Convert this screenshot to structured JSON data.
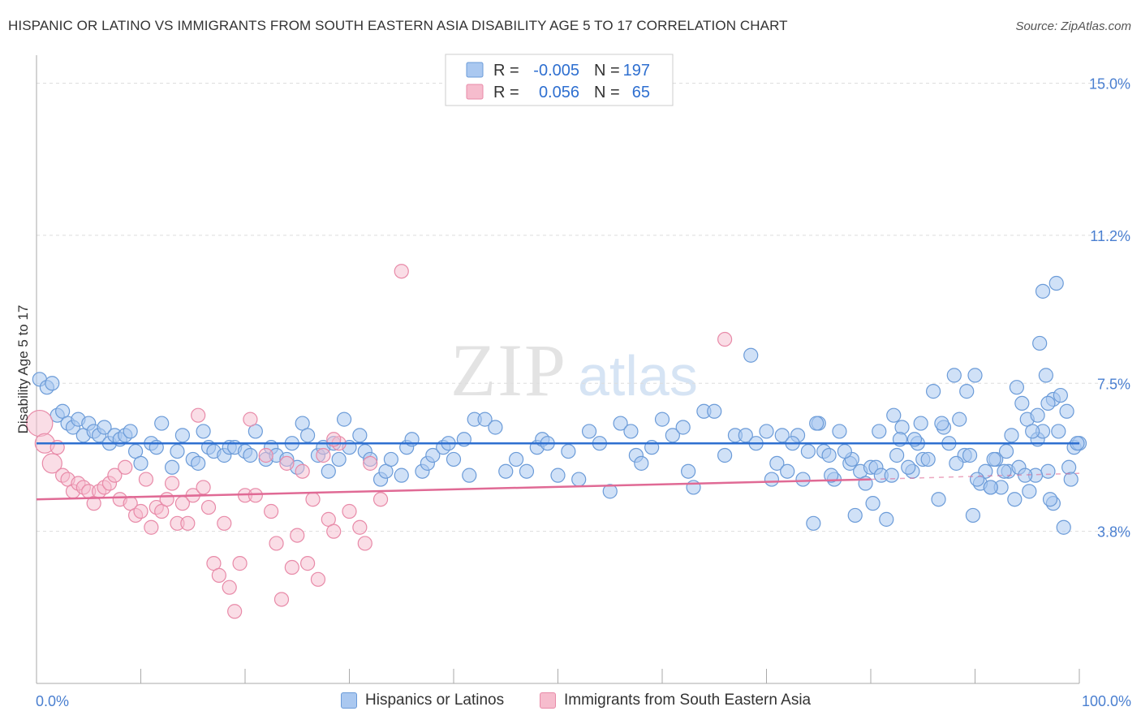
{
  "title": "HISPANIC OR LATINO VS IMMIGRANTS FROM SOUTH EASTERN ASIA DISABILITY AGE 5 TO 17 CORRELATION CHART",
  "source": "Source: ZipAtlas.com",
  "colors": {
    "blue_fill": "#aac8f0",
    "blue_stroke": "#6b9bd8",
    "blue_line": "#2e6fd0",
    "pink_fill": "#f6bccd",
    "pink_stroke": "#e88aa8",
    "pink_line": "#e06a95",
    "axis_label_blue": "#4a7fd0",
    "grid": "#dddddd"
  },
  "legend": {
    "rows": [
      {
        "r_label": "R =",
        "r_value": "-0.005",
        "n_label": "N =",
        "n_value": "197"
      },
      {
        "r_label": "R =",
        "r_value": "0.056",
        "n_label": "N =",
        "n_value": "65"
      }
    ]
  },
  "bottom_legend": {
    "series1": "Hispanics or Latinos",
    "series2": "Immigrants from South Eastern Asia"
  },
  "chart_data": {
    "type": "scatter",
    "title": "HISPANIC OR LATINO VS IMMIGRANTS FROM SOUTH EASTERN ASIA DISABILITY AGE 5 TO 17 CORRELATION CHART",
    "xlabel": "",
    "ylabel": "Disability Age 5 to 17",
    "xlim": [
      0,
      100
    ],
    "ylim": [
      0.0,
      15.7
    ],
    "x_tick_labels": [
      "0.0%",
      "100.0%"
    ],
    "y_ticks": [
      3.8,
      7.5,
      11.2,
      15.0
    ],
    "y_tick_labels": [
      "3.8%",
      "7.5%",
      "11.2%",
      "15.0%"
    ],
    "grid": true,
    "watermark": "ZIPatlas",
    "series": [
      {
        "name": "Hispanics or Latinos",
        "r": -0.005,
        "n": 197,
        "trend": {
          "x": [
            0,
            100
          ],
          "y": [
            6.0,
            6.0
          ]
        },
        "points": [
          [
            0.3,
            7.6
          ],
          [
            1,
            7.4
          ],
          [
            1.5,
            7.5
          ],
          [
            2,
            6.7
          ],
          [
            2.5,
            6.8
          ],
          [
            3,
            6.5
          ],
          [
            3.5,
            6.4
          ],
          [
            4,
            6.6
          ],
          [
            4.5,
            6.2
          ],
          [
            5,
            6.5
          ],
          [
            5.5,
            6.3
          ],
          [
            6,
            6.2
          ],
          [
            6.5,
            6.4
          ],
          [
            7,
            6.0
          ],
          [
            7.5,
            6.2
          ],
          [
            8,
            6.1
          ],
          [
            8.5,
            6.2
          ],
          [
            9,
            6.3
          ],
          [
            9.5,
            5.8
          ],
          [
            10,
            5.5
          ],
          [
            11,
            6.0
          ],
          [
            11.5,
            5.9
          ],
          [
            12,
            6.5
          ],
          [
            13,
            5.4
          ],
          [
            13.5,
            5.8
          ],
          [
            14,
            6.2
          ],
          [
            15,
            5.6
          ],
          [
            15.5,
            5.5
          ],
          [
            16,
            6.3
          ],
          [
            16.5,
            5.9
          ],
          [
            17,
            5.8
          ],
          [
            18,
            5.7
          ],
          [
            18.5,
            5.9
          ],
          [
            19,
            5.9
          ],
          [
            20,
            5.8
          ],
          [
            20.5,
            5.7
          ],
          [
            21,
            6.3
          ],
          [
            22,
            5.6
          ],
          [
            22.5,
            5.9
          ],
          [
            23,
            5.7
          ],
          [
            24,
            5.6
          ],
          [
            24.5,
            6.0
          ],
          [
            25,
            5.4
          ],
          [
            25.5,
            6.5
          ],
          [
            26,
            6.2
          ],
          [
            27,
            5.7
          ],
          [
            27.5,
            5.9
          ],
          [
            28,
            5.3
          ],
          [
            28.5,
            6.0
          ],
          [
            29,
            5.6
          ],
          [
            29.5,
            6.6
          ],
          [
            30,
            5.9
          ],
          [
            31,
            6.2
          ],
          [
            31.5,
            5.8
          ],
          [
            32,
            5.6
          ],
          [
            33,
            5.1
          ],
          [
            33.5,
            5.3
          ],
          [
            34,
            5.6
          ],
          [
            35,
            5.2
          ],
          [
            35.5,
            5.9
          ],
          [
            36,
            6.1
          ],
          [
            37,
            5.3
          ],
          [
            37.5,
            5.5
          ],
          [
            38,
            5.7
          ],
          [
            39,
            5.9
          ],
          [
            39.5,
            6.0
          ],
          [
            40,
            5.6
          ],
          [
            41,
            6.1
          ],
          [
            41.5,
            5.2
          ],
          [
            42,
            6.6
          ],
          [
            43,
            6.6
          ],
          [
            44,
            6.4
          ],
          [
            45,
            5.3
          ],
          [
            46,
            5.6
          ],
          [
            47,
            5.3
          ],
          [
            48,
            5.9
          ],
          [
            48.5,
            6.1
          ],
          [
            49,
            6.0
          ],
          [
            50,
            5.2
          ],
          [
            51,
            5.8
          ],
          [
            52,
            5.1
          ],
          [
            53,
            6.3
          ],
          [
            54,
            6.0
          ],
          [
            55,
            4.8
          ],
          [
            56,
            6.5
          ],
          [
            57,
            6.3
          ],
          [
            57.5,
            5.7
          ],
          [
            58,
            5.5
          ],
          [
            59,
            5.9
          ],
          [
            60,
            6.6
          ],
          [
            61,
            6.2
          ],
          [
            62,
            6.4
          ],
          [
            62.5,
            5.3
          ],
          [
            63,
            4.9
          ],
          [
            64,
            6.8
          ],
          [
            65,
            6.8
          ],
          [
            66,
            5.7
          ],
          [
            67,
            6.2
          ],
          [
            68,
            6.2
          ],
          [
            68.5,
            8.2
          ],
          [
            69,
            6.0
          ],
          [
            70,
            6.3
          ],
          [
            71,
            5.5
          ],
          [
            71.5,
            6.2
          ],
          [
            72,
            5.3
          ],
          [
            73,
            6.2
          ],
          [
            74,
            5.8
          ],
          [
            75,
            6.5
          ],
          [
            75.5,
            5.8
          ],
          [
            76,
            5.7
          ],
          [
            77,
            6.3
          ],
          [
            78,
            5.5
          ],
          [
            79,
            5.3
          ],
          [
            80,
            5.4
          ],
          [
            80.5,
            5.4
          ],
          [
            81,
            5.2
          ],
          [
            82,
            5.2
          ],
          [
            82.5,
            5.7
          ],
          [
            83,
            6.4
          ],
          [
            84,
            5.3
          ],
          [
            84.5,
            6.0
          ],
          [
            85,
            5.6
          ],
          [
            86,
            7.3
          ],
          [
            87,
            6.4
          ],
          [
            87.5,
            6.0
          ],
          [
            88,
            7.7
          ],
          [
            89,
            5.7
          ],
          [
            89.5,
            5.7
          ],
          [
            90,
            7.7
          ],
          [
            91,
            5.3
          ],
          [
            91.5,
            4.9
          ],
          [
            92,
            5.6
          ],
          [
            93,
            5.8
          ],
          [
            93.5,
            6.2
          ],
          [
            94,
            7.4
          ],
          [
            95,
            6.6
          ],
          [
            96,
            6.1
          ],
          [
            96.5,
            6.3
          ],
          [
            97,
            5.3
          ],
          [
            98,
            6.3
          ],
          [
            99,
            5.4
          ],
          [
            99.5,
            5.9
          ],
          [
            100,
            6.0
          ],
          [
            70.5,
            5.1
          ],
          [
            72.5,
            6.0
          ],
          [
            74.5,
            4.0
          ],
          [
            76.5,
            5.1
          ],
          [
            78.5,
            4.2
          ],
          [
            80.2,
            4.5
          ],
          [
            82.2,
            6.7
          ],
          [
            83.6,
            5.4
          ],
          [
            84.8,
            6.5
          ],
          [
            86.5,
            4.6
          ],
          [
            88.5,
            6.6
          ],
          [
            89.2,
            7.3
          ],
          [
            90.5,
            5.0
          ],
          [
            91.8,
            5.6
          ],
          [
            92.5,
            4.9
          ],
          [
            93.2,
            5.3
          ],
          [
            94.5,
            7.0
          ],
          [
            95.5,
            6.3
          ],
          [
            96.2,
            8.5
          ],
          [
            96.8,
            7.7
          ],
          [
            97.5,
            4.5
          ],
          [
            98.5,
            3.9
          ],
          [
            99.2,
            5.1
          ],
          [
            98.8,
            6.8
          ],
          [
            99.8,
            6.0
          ],
          [
            97.2,
            4.6
          ],
          [
            95.2,
            4.8
          ],
          [
            94.2,
            5.4
          ],
          [
            93.8,
            4.6
          ],
          [
            96.5,
            9.8
          ],
          [
            97.8,
            10.0
          ],
          [
            97.5,
            7.1
          ],
          [
            98.2,
            7.2
          ],
          [
            97.0,
            7.0
          ],
          [
            96.0,
            6.7
          ],
          [
            95.8,
            5.2
          ],
          [
            94.8,
            5.2
          ],
          [
            92.8,
            5.3
          ],
          [
            91.5,
            4.9
          ],
          [
            90.2,
            5.1
          ],
          [
            89.8,
            4.2
          ],
          [
            88.2,
            5.5
          ],
          [
            86.8,
            6.5
          ],
          [
            85.5,
            5.6
          ],
          [
            84.2,
            6.1
          ],
          [
            82.8,
            6.1
          ],
          [
            81.5,
            4.1
          ],
          [
            80.8,
            6.3
          ],
          [
            79.5,
            5.0
          ],
          [
            78.2,
            5.6
          ],
          [
            77.5,
            5.8
          ],
          [
            76.2,
            5.2
          ],
          [
            74.8,
            6.5
          ],
          [
            73.5,
            5.1
          ]
        ]
      },
      {
        "name": "Immigrants from South Eastern Asia",
        "r": 0.056,
        "n": 65,
        "trend": {
          "x": [
            0,
            80
          ],
          "y": [
            4.6,
            5.1
          ]
        },
        "trend_dashed": {
          "x": [
            80,
            100
          ],
          "y": [
            5.1,
            5.25
          ]
        },
        "points": [
          [
            0.3,
            6.5
          ],
          [
            0.8,
            6.0
          ],
          [
            1.5,
            5.5
          ],
          [
            2,
            5.9
          ],
          [
            2.5,
            5.2
          ],
          [
            3,
            5.1
          ],
          [
            3.5,
            4.8
          ],
          [
            4,
            5.0
          ],
          [
            4.5,
            4.9
          ],
          [
            5,
            4.8
          ],
          [
            5.5,
            4.5
          ],
          [
            6,
            4.8
          ],
          [
            6.5,
            4.9
          ],
          [
            7,
            5.0
          ],
          [
            7.5,
            5.2
          ],
          [
            8,
            4.6
          ],
          [
            8.5,
            5.4
          ],
          [
            9,
            4.5
          ],
          [
            9.5,
            4.2
          ],
          [
            10,
            4.3
          ],
          [
            10.5,
            5.1
          ],
          [
            11,
            3.9
          ],
          [
            11.5,
            4.4
          ],
          [
            12,
            4.3
          ],
          [
            12.5,
            4.6
          ],
          [
            13,
            5.0
          ],
          [
            13.5,
            4.0
          ],
          [
            14,
            4.5
          ],
          [
            14.5,
            4.0
          ],
          [
            15,
            4.7
          ],
          [
            15.5,
            6.7
          ],
          [
            16,
            4.9
          ],
          [
            16.5,
            4.4
          ],
          [
            17,
            3.0
          ],
          [
            17.5,
            2.7
          ],
          [
            18,
            4.0
          ],
          [
            18.5,
            2.4
          ],
          [
            19,
            1.8
          ],
          [
            19.5,
            3.0
          ],
          [
            20,
            4.7
          ],
          [
            20.5,
            6.6
          ],
          [
            21,
            4.7
          ],
          [
            22,
            5.7
          ],
          [
            22.5,
            4.3
          ],
          [
            23,
            3.5
          ],
          [
            23.5,
            2.1
          ],
          [
            24,
            5.5
          ],
          [
            24.5,
            2.9
          ],
          [
            25,
            3.7
          ],
          [
            25.5,
            5.3
          ],
          [
            26,
            3.0
          ],
          [
            26.5,
            4.6
          ],
          [
            27,
            2.6
          ],
          [
            27.5,
            5.7
          ],
          [
            28,
            4.1
          ],
          [
            28.5,
            3.8
          ],
          [
            29,
            6.0
          ],
          [
            30,
            4.3
          ],
          [
            31,
            3.9
          ],
          [
            31.5,
            3.5
          ],
          [
            32,
            5.5
          ],
          [
            33,
            4.6
          ],
          [
            35,
            10.3
          ],
          [
            66,
            8.6
          ],
          [
            28.5,
            6.1
          ]
        ]
      }
    ]
  }
}
